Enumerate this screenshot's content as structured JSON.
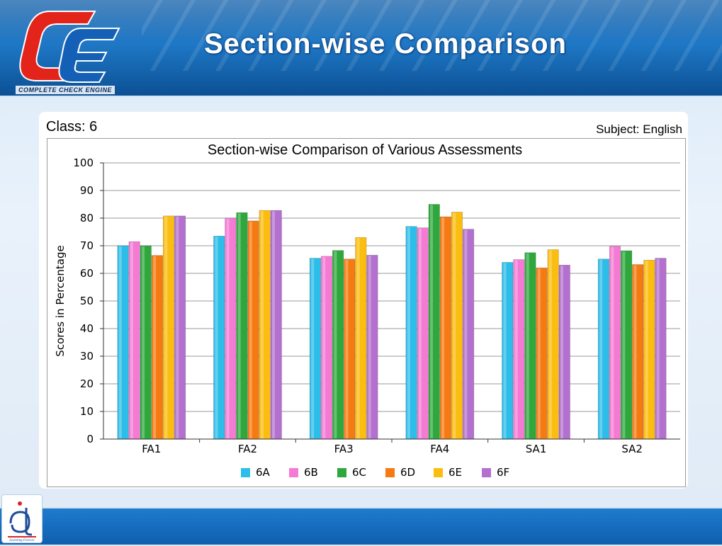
{
  "header": {
    "logo_text": "COMPLETE CHECK ENGINE",
    "title": "Section-wise Comparison"
  },
  "meta": {
    "class_label": "Class: 6",
    "subject_label": "Subject: English"
  },
  "footer": {
    "logo_text": "Learning Forever"
  },
  "colors": {
    "6A": "#2cbde8",
    "6B": "#f47ad4",
    "6C": "#2ea83c",
    "6D": "#f57a12",
    "6E": "#fbbd10",
    "6F": "#b370cf"
  },
  "chart_data": {
    "type": "bar",
    "title": "Section-wise Comparison of Various Assessments",
    "xlabel": "",
    "ylabel": "Scores in Percentage",
    "ylim": [
      0,
      100
    ],
    "yticks": [
      0,
      10,
      20,
      30,
      40,
      50,
      60,
      70,
      80,
      90,
      100
    ],
    "grid": true,
    "legend_position": "bottom",
    "categories": [
      "FA1",
      "FA2",
      "FA3",
      "FA4",
      "SA1",
      "SA2"
    ],
    "series": [
      {
        "name": "6A",
        "values": [
          70,
          73.5,
          65.5,
          77,
          64,
          65.2
        ]
      },
      {
        "name": "6B",
        "values": [
          71.5,
          80,
          66.2,
          76.5,
          65,
          69.8
        ]
      },
      {
        "name": "6C",
        "values": [
          70,
          82,
          68.3,
          85,
          67.5,
          68.2
        ]
      },
      {
        "name": "6D",
        "values": [
          66.5,
          79,
          65.2,
          80.5,
          62,
          63.2
        ]
      },
      {
        "name": "6E",
        "values": [
          80.8,
          82.8,
          73,
          82.2,
          68.6,
          64.8
        ]
      },
      {
        "name": "6F",
        "values": [
          80.8,
          82.8,
          66.6,
          76,
          63,
          65.5
        ]
      }
    ]
  }
}
